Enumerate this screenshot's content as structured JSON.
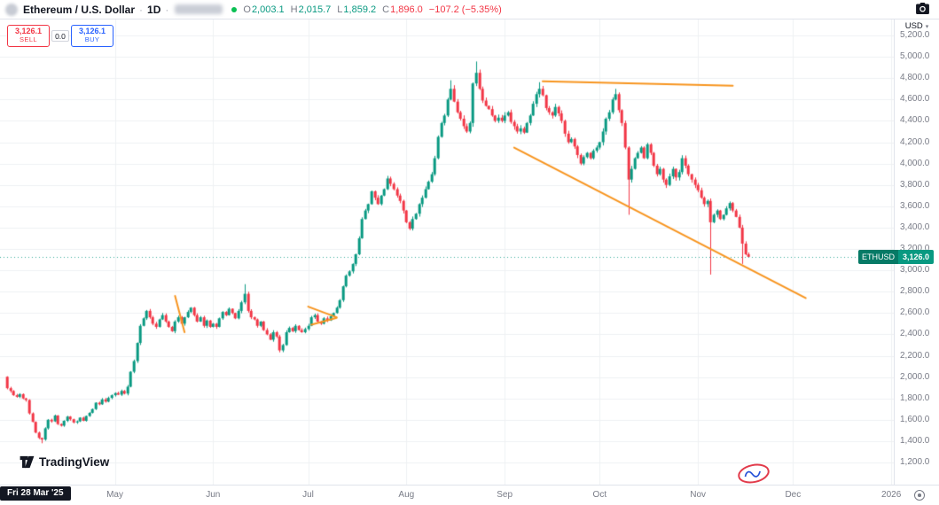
{
  "header": {
    "symbol_title": "Ethereum / U.S. Dollar",
    "dot_sep": "·",
    "interval": "1D",
    "ohlc": {
      "o_label": "O",
      "o_value": "2,003.1",
      "h_label": "H",
      "h_value": "2,015.7",
      "l_label": "L",
      "l_value": "1,859.2",
      "c_label": "C",
      "c_value": "1,896.0",
      "change": "−107.2 (−5.35%)"
    }
  },
  "trade_panel": {
    "sell_price": "3,126.1",
    "sell_label": "SELL",
    "spread": "0.0",
    "buy_price": "3,126.1",
    "buy_label": "BUY"
  },
  "price_scale": {
    "currency": "USD",
    "caret": "▾",
    "labels": [
      "5,200.0",
      "5,000.0",
      "4,800.0",
      "4,600.0",
      "4,400.0",
      "4,200.0",
      "4,000.0",
      "3,800.0",
      "3,600.0",
      "3,400.0",
      "3,200.0",
      "3,000.0",
      "2,800.0",
      "2,600.0",
      "2,400.0",
      "2,200.0",
      "2,000.0",
      "1,800.0",
      "1,600.0",
      "1,400.0",
      "1,200.0"
    ],
    "last_price_badge": {
      "symbol": "ETHUSD",
      "price": "3,126.0"
    }
  },
  "time_scale": {
    "labels": [
      "May",
      "Jun",
      "Jul",
      "Aug",
      "Sep",
      "Oct",
      "Nov",
      "Dec",
      "2026"
    ],
    "date_tag": "Fri 28 Mar '25"
  },
  "footer": {
    "brand": "TradingView"
  },
  "chart_data": {
    "type": "candlestick",
    "symbol": "ETHUSD",
    "interval": "1D",
    "start_date": "2025-03-28",
    "first_open": 2003.1,
    "last_close": 3126.0,
    "price_axis": {
      "min": 1200,
      "max": 5200,
      "step": 200
    },
    "month_tick_days": [
      34,
      65,
      95,
      126,
      157,
      187,
      218,
      248,
      279
    ],
    "closes": [
      1896,
      1870,
      1830,
      1815,
      1840,
      1800,
      1785,
      1660,
      1580,
      1480,
      1430,
      1415,
      1520,
      1600,
      1585,
      1640,
      1560,
      1545,
      1590,
      1630,
      1605,
      1575,
      1585,
      1620,
      1590,
      1635,
      1665,
      1700,
      1760,
      1745,
      1790,
      1770,
      1805,
      1830,
      1850,
      1835,
      1870,
      1845,
      1910,
      2050,
      2150,
      2320,
      2480,
      2550,
      2620,
      2560,
      2500,
      2470,
      2540,
      2580,
      2520,
      2470,
      2430,
      2520,
      2560,
      2500,
      2560,
      2610,
      2650,
      2580,
      2520,
      2560,
      2480,
      2530,
      2470,
      2500,
      2470,
      2550,
      2610,
      2580,
      2640,
      2600,
      2550,
      2620,
      2700,
      2780,
      2620,
      2560,
      2540,
      2480,
      2520,
      2440,
      2400,
      2350,
      2420,
      2380,
      2250,
      2300,
      2420,
      2460,
      2430,
      2480,
      2440,
      2420,
      2450,
      2480,
      2560,
      2580,
      2520,
      2500,
      2550,
      2530,
      2570,
      2600,
      2650,
      2720,
      2850,
      2950,
      2990,
      3060,
      3150,
      3300,
      3480,
      3560,
      3620,
      3740,
      3680,
      3620,
      3700,
      3760,
      3860,
      3810,
      3760,
      3700,
      3650,
      3560,
      3450,
      3390,
      3480,
      3530,
      3620,
      3680,
      3760,
      3830,
      3900,
      4050,
      4250,
      4380,
      4450,
      4600,
      4700,
      4580,
      4480,
      4420,
      4350,
      4300,
      4380,
      4750,
      4850,
      4700,
      4590,
      4540,
      4510,
      4450,
      4400,
      4430,
      4400,
      4450,
      4480,
      4390,
      4350,
      4300,
      4330,
      4290,
      4380,
      4450,
      4560,
      4650,
      4700,
      4640,
      4520,
      4480,
      4450,
      4530,
      4470,
      4400,
      4280,
      4200,
      4230,
      4160,
      4080,
      4000,
      4060,
      4100,
      4050,
      4120,
      4150,
      4200,
      4300,
      4420,
      4480,
      4600,
      4650,
      4500,
      4380,
      4150,
      3850,
      3950,
      4050,
      4100,
      4150,
      4050,
      4180,
      4100,
      3980,
      3900,
      3950,
      3850,
      3800,
      3880,
      3950,
      3870,
      3920,
      4050,
      3980,
      3900,
      3850,
      3800,
      3750,
      3680,
      3620,
      3650,
      3450,
      3520,
      3560,
      3480,
      3520,
      3580,
      3630,
      3560,
      3500,
      3400,
      3250,
      3150,
      3126
    ],
    "wick_overrides": {
      "11": {
        "low": 1380
      },
      "75": {
        "high": 2870
      },
      "140": {
        "high": 4780
      },
      "148": {
        "high": 4956
      },
      "168": {
        "high": 4762
      },
      "192": {
        "high": 4700
      },
      "196": {
        "low": 3520
      },
      "222": {
        "low": 2960
      },
      "232": {
        "low": 3060
      }
    },
    "trendlines": [
      {
        "name": "resistance-top",
        "from_day": 169,
        "from_price": 4770,
        "to_day": 229,
        "to_price": 4730
      },
      {
        "name": "descending-support",
        "from_day": 160,
        "from_price": 4150,
        "to_day": 252,
        "to_price": 2740
      },
      {
        "name": "pennant-upper",
        "from_day": 95,
        "from_price": 2660,
        "to_day": 104,
        "to_price": 2560
      },
      {
        "name": "pennant-lower",
        "from_day": 96,
        "from_price": 2490,
        "to_day": 104,
        "to_price": 2555
      },
      {
        "name": "may-line",
        "from_day": 53,
        "from_price": 2760,
        "to_day": 56,
        "to_price": 2420
      }
    ],
    "colors": {
      "up": "#089981",
      "down": "#f23645",
      "trendline": "#f7941e",
      "grid": "#eef0f3",
      "last_price_line": "#089981"
    }
  }
}
